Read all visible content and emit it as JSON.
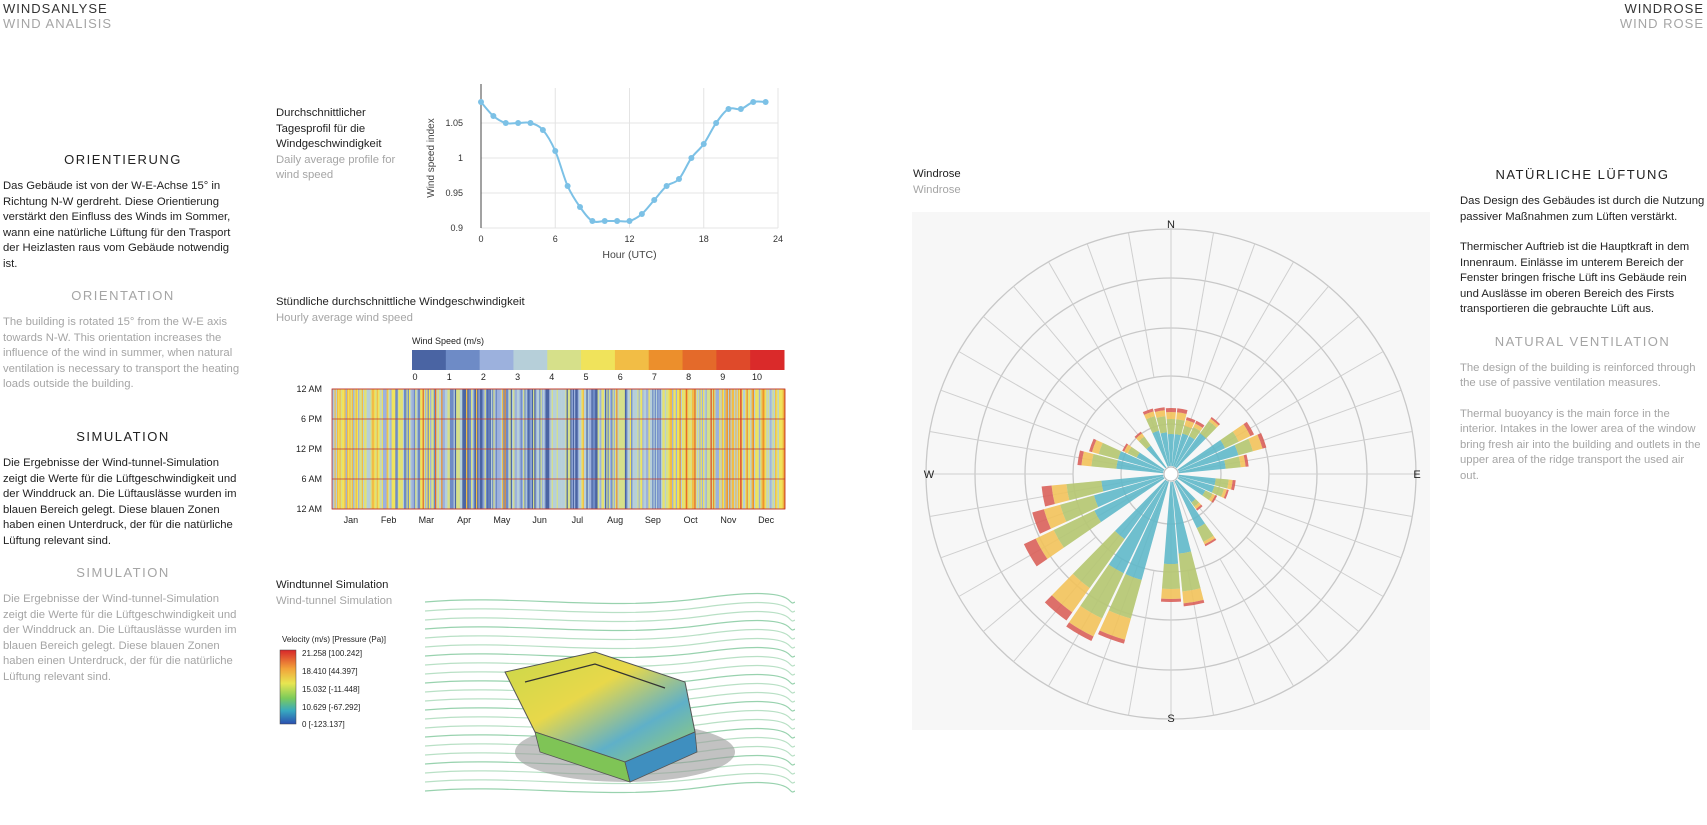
{
  "header": {
    "left_de": "WINDSANLYSE",
    "left_en": "WIND ANALISIS",
    "right_de": "WINDROSE",
    "right_en": "WIND ROSE"
  },
  "orientation": {
    "title_de": "ORIENTIERUNG",
    "text_de": "Das Gebäude ist von der W-E-Achse 15° in Richtung N-W gerdreht. Diese Orientierung verstärkt den Einfluss des Winds im Sommer, wann eine natürliche Lüftung für den Trasport der Heizlasten raus vom Gebäude notwendig ist.",
    "title_en": "ORIENTATION",
    "text_en": "The building is rotated 15° from the W-E axis towards N-W. This orientation increases the influence of the wind in summer, when natural ventilation is necessary to transport the heating loads outside the building."
  },
  "simulation": {
    "title_de": "SIMULATION",
    "text_de": "Die Ergebnisse der Wind-tunnel-Simulation zeigt die Werte für die Lüftgeschwindigkeit und der Winddruck an. Die Lüftauslässe wurden im blauen Bereich gelegt. Diese blauen Zonen haben einen Unterdruck, der für die natürliche Lüftung relevant sind.",
    "title_en": "SIMULATION",
    "text_en": "Die Ergebnisse der Wind-tunnel-Simulation zeigt die Werte für die Lüftgeschwindigkeit und der Winddruck an. Die Lüftauslässe wurden im blauen Bereich gelegt. Diese blauen Zonen haben einen Unterdruck, der für die natürliche Lüftung relevant sind."
  },
  "daily_profile": {
    "caption_de": "Durchschnittlicher Tagesprofil  für die Windgeschwindigkeit",
    "caption_en": "Daily average profile for wind speed"
  },
  "hourly": {
    "caption_de": "Stündliche durchschnittliche Windgeschwindigkeit",
    "caption_en": "Hourly average wind speed"
  },
  "tunnel": {
    "caption_de": "Windtunnel Simulation",
    "caption_en": "Wind-tunnel Simulation",
    "legend_title": "Velocity (m/s) [Pressure (Pa)]",
    "legend_labels": [
      "21.258 [100.242]",
      "18.410 [44.397]",
      "15.032 [-11.448]",
      "10.629 [-67.292]",
      "0 [-123.137]"
    ]
  },
  "rose": {
    "caption_de": "Windrose",
    "caption_en": "Windrose",
    "directions": [
      "N",
      "E",
      "S",
      "W"
    ],
    "petal_colors": [
      "#5fb8c9",
      "#9fae86",
      "#c5d66a",
      "#f2c25a",
      "#d9615a"
    ]
  },
  "ventilation": {
    "title_de": "NATÜRLICHE LÜFTUNG",
    "text_de_1": "Das Design des Gebäudes ist durch die Nutzung passiver Maßnahmen zum Lüften verstärkt.",
    "text_de_2": "Thermischer Auftrieb ist die Hauptkraft in dem Innenraum. Einlässe im unterem Bereich der Fenster bringen frische Lüft ins Gebäude rein und Auslässe im oberen Bereich des Firsts transportieren die gebrauchte Lüft aus.",
    "title_en": "NATURAL VENTILATION",
    "text_en_1": "The design of the building is reinforced through the use of passive ventilation measures.",
    "text_en_2": "Thermal buoyancy is the main force in the interior. Intakes in the lower area of the window bring fresh air into the building and outlets in the upper area of the ridge transport the used air out."
  },
  "chart_data": [
    {
      "type": "line",
      "xlabel": "Hour (UTC)",
      "ylabel": "Wind speed index",
      "xlim": [
        0,
        24
      ],
      "ylim": [
        0.9,
        1.1
      ],
      "xticks": [
        "0",
        "6",
        "12",
        "18",
        "24"
      ],
      "yticks": [
        "0.9",
        "0.95",
        "1",
        "1.05"
      ],
      "color": "#7cc1e6",
      "x": [
        0,
        1,
        2,
        3,
        4,
        5,
        6,
        7,
        8,
        9,
        10,
        11,
        12,
        13,
        14,
        15,
        16,
        17,
        18,
        19,
        20,
        21,
        22,
        23
      ],
      "y": [
        1.08,
        1.06,
        1.05,
        1.05,
        1.05,
        1.04,
        1.01,
        0.96,
        0.93,
        0.91,
        0.91,
        0.91,
        0.91,
        0.92,
        0.94,
        0.96,
        0.97,
        1.0,
        1.02,
        1.05,
        1.07,
        1.07,
        1.08,
        1.08
      ]
    },
    {
      "type": "heatmap",
      "legend_title": "Wind Speed (m/s)",
      "scale_labels": [
        "0",
        "1",
        "2",
        "3",
        "4",
        "5",
        "6",
        "7",
        "8",
        "9",
        "10"
      ],
      "scale_colors": [
        "#4a64a3",
        "#6e8bc6",
        "#9cb1dd",
        "#b6cfd9",
        "#d6e08a",
        "#f0e35b",
        "#f2bd45",
        "#ec8f2c",
        "#e46a2a",
        "#df4a2a",
        "#da2a2a"
      ],
      "y_labels": [
        "12 AM",
        "6 PM",
        "12 PM",
        "6 AM",
        "12 AM"
      ],
      "x_labels": [
        "Jan",
        "Feb",
        "Mar",
        "Apr",
        "May",
        "Jun",
        "Jul",
        "Aug",
        "Sep",
        "Oct",
        "Nov",
        "Dec"
      ]
    }
  ]
}
